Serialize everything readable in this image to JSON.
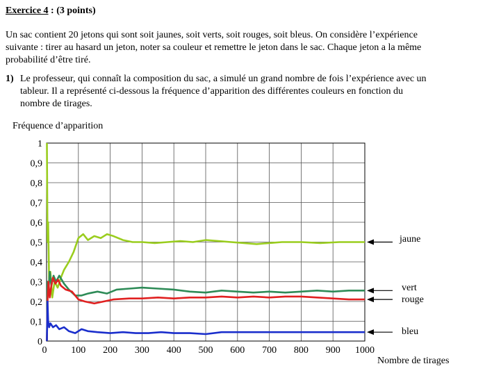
{
  "exercise": {
    "title_underlined": "Exercice 4",
    "title_rest": " : (3 points)"
  },
  "intro": {
    "line1": "Un sac contient 20 jetons qui sont soit jaunes, soit verts, soit rouges, soit bleus. On considère l’expérience",
    "line2": "suivante : tirer au hasard un jeton, noter sa couleur et remettre le jeton dans le sac. Chaque jeton a la même",
    "line3": "probabilité d’être tiré."
  },
  "question1": {
    "number": "1)",
    "line1": "Le professeur, qui connaît la composition du sac, a simulé un grand nombre de fois l’expérience avec un",
    "line2": "tableur. Il a représenté ci-dessous la fréquence d’apparition des différentes couleurs en fonction du",
    "line3": "nombre de tirages."
  },
  "chart_data": {
    "type": "line",
    "ylabel": "Fréquence d’apparition",
    "xlabel": "Nombre de tirages",
    "xlim": [
      0,
      1000
    ],
    "ylim": [
      0,
      1
    ],
    "grid": true,
    "x_ticks": [
      "0",
      "100",
      "200",
      "300",
      "400",
      "500",
      "600",
      "700",
      "800",
      "900",
      "1000"
    ],
    "y_ticks": [
      "0",
      "0,1",
      "0,2",
      "0,3",
      "0,4",
      "0,5",
      "0,6",
      "0,7",
      "0,8",
      "0,9",
      "1"
    ],
    "series": [
      {
        "name": "jaune",
        "color": "#9acd1e",
        "points": [
          [
            1,
            1
          ],
          [
            3,
            0.5
          ],
          [
            5,
            0.6
          ],
          [
            8,
            0.3
          ],
          [
            12,
            0.35
          ],
          [
            18,
            0.22
          ],
          [
            25,
            0.3
          ],
          [
            35,
            0.27
          ],
          [
            45,
            0.32
          ],
          [
            55,
            0.36
          ],
          [
            70,
            0.4
          ],
          [
            85,
            0.45
          ],
          [
            100,
            0.52
          ],
          [
            115,
            0.54
          ],
          [
            130,
            0.51
          ],
          [
            150,
            0.53
          ],
          [
            170,
            0.52
          ],
          [
            190,
            0.54
          ],
          [
            210,
            0.53
          ],
          [
            240,
            0.51
          ],
          [
            270,
            0.5
          ],
          [
            300,
            0.5
          ],
          [
            340,
            0.495
          ],
          [
            380,
            0.5
          ],
          [
            420,
            0.505
          ],
          [
            460,
            0.5
          ],
          [
            500,
            0.51
          ],
          [
            540,
            0.505
          ],
          [
            580,
            0.5
          ],
          [
            620,
            0.495
          ],
          [
            660,
            0.49
          ],
          [
            700,
            0.495
          ],
          [
            740,
            0.5
          ],
          [
            800,
            0.5
          ],
          [
            860,
            0.495
          ],
          [
            920,
            0.5
          ],
          [
            1000,
            0.5
          ]
        ]
      },
      {
        "name": "vert",
        "color": "#2e8b57",
        "points": [
          [
            1,
            0
          ],
          [
            3,
            0.3
          ],
          [
            6,
            0.25
          ],
          [
            10,
            0.35
          ],
          [
            15,
            0.28
          ],
          [
            22,
            0.33
          ],
          [
            30,
            0.3
          ],
          [
            40,
            0.33
          ],
          [
            55,
            0.29
          ],
          [
            70,
            0.26
          ],
          [
            90,
            0.23
          ],
          [
            110,
            0.23
          ],
          [
            130,
            0.24
          ],
          [
            160,
            0.25
          ],
          [
            190,
            0.24
          ],
          [
            220,
            0.26
          ],
          [
            260,
            0.265
          ],
          [
            300,
            0.27
          ],
          [
            350,
            0.265
          ],
          [
            400,
            0.26
          ],
          [
            450,
            0.25
          ],
          [
            500,
            0.245
          ],
          [
            550,
            0.255
          ],
          [
            600,
            0.25
          ],
          [
            650,
            0.245
          ],
          [
            700,
            0.25
          ],
          [
            750,
            0.245
          ],
          [
            800,
            0.25
          ],
          [
            850,
            0.255
          ],
          [
            900,
            0.25
          ],
          [
            950,
            0.255
          ],
          [
            1000,
            0.255
          ]
        ]
      },
      {
        "name": "rouge",
        "color": "#e02020",
        "points": [
          [
            1,
            0
          ],
          [
            3,
            0.2
          ],
          [
            6,
            0.3
          ],
          [
            10,
            0.22
          ],
          [
            15,
            0.28
          ],
          [
            20,
            0.32
          ],
          [
            28,
            0.29
          ],
          [
            36,
            0.31
          ],
          [
            45,
            0.28
          ],
          [
            60,
            0.26
          ],
          [
            80,
            0.25
          ],
          [
            100,
            0.21
          ],
          [
            120,
            0.2
          ],
          [
            150,
            0.19
          ],
          [
            180,
            0.2
          ],
          [
            210,
            0.21
          ],
          [
            260,
            0.215
          ],
          [
            300,
            0.215
          ],
          [
            350,
            0.22
          ],
          [
            400,
            0.215
          ],
          [
            450,
            0.22
          ],
          [
            500,
            0.22
          ],
          [
            550,
            0.225
          ],
          [
            600,
            0.22
          ],
          [
            650,
            0.225
          ],
          [
            700,
            0.22
          ],
          [
            750,
            0.225
          ],
          [
            800,
            0.225
          ],
          [
            850,
            0.22
          ],
          [
            900,
            0.215
          ],
          [
            950,
            0.21
          ],
          [
            1000,
            0.21
          ]
        ]
      },
      {
        "name": "bleu",
        "color": "#1a2ecc",
        "points": [
          [
            1,
            0
          ],
          [
            3,
            0.2
          ],
          [
            5,
            0.1
          ],
          [
            8,
            0.07
          ],
          [
            12,
            0.09
          ],
          [
            20,
            0.07
          ],
          [
            30,
            0.08
          ],
          [
            40,
            0.06
          ],
          [
            55,
            0.07
          ],
          [
            70,
            0.05
          ],
          [
            90,
            0.04
          ],
          [
            110,
            0.06
          ],
          [
            130,
            0.05
          ],
          [
            160,
            0.045
          ],
          [
            200,
            0.04
          ],
          [
            240,
            0.045
          ],
          [
            280,
            0.04
          ],
          [
            320,
            0.04
          ],
          [
            360,
            0.045
          ],
          [
            400,
            0.04
          ],
          [
            450,
            0.04
          ],
          [
            500,
            0.035
          ],
          [
            550,
            0.045
          ],
          [
            600,
            0.045
          ],
          [
            650,
            0.045
          ],
          [
            700,
            0.045
          ],
          [
            750,
            0.045
          ],
          [
            800,
            0.045
          ],
          [
            850,
            0.045
          ],
          [
            900,
            0.045
          ],
          [
            950,
            0.045
          ],
          [
            1000,
            0.045
          ]
        ]
      }
    ]
  }
}
